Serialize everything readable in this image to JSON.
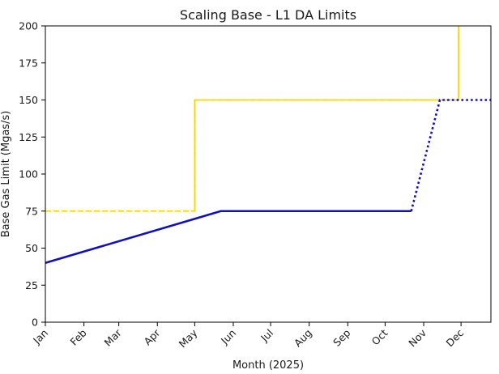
{
  "chart_data": {
    "type": "line",
    "title": "Scaling Base - L1 DA Limits",
    "xlabel": "Month (2025)",
    "ylabel": "Base Gas Limit (Mgas/s)",
    "xlim": [
      "2025-01-01",
      "2025-12-25"
    ],
    "ylim": [
      0,
      200
    ],
    "x_ticks": [
      "2025-01-01",
      "2025-02-01",
      "2025-03-01",
      "2025-04-01",
      "2025-05-01",
      "2025-06-01",
      "2025-07-01",
      "2025-08-01",
      "2025-09-01",
      "2025-10-01",
      "2025-11-01",
      "2025-12-01"
    ],
    "x_tick_labels": [
      "Jan",
      "Feb",
      "Mar",
      "Apr",
      "May",
      "Jun",
      "Jul",
      "Aug",
      "Sep",
      "Oct",
      "Nov",
      "Dec"
    ],
    "y_ticks": [
      0,
      25,
      50,
      75,
      100,
      125,
      150,
      175,
      200
    ],
    "grid": false,
    "legend": "none",
    "series": [
      {
        "color": "#ffd700",
        "style": "dashed",
        "x": [
          "2025-01-01",
          "2025-05-01",
          "2025-05-01",
          "2025-11-26"
        ],
        "values": [
          75,
          75,
          150,
          150
        ]
      },
      {
        "color": "#ffd700",
        "style": "solid",
        "x": [
          "2025-05-01",
          "2025-05-01",
          "2025-11-29",
          "2025-11-29"
        ],
        "values": [
          75,
          150,
          150,
          200
        ]
      },
      {
        "color": "#1010c0",
        "style": "solid",
        "x": [
          "2025-01-01",
          "2025-05-22",
          "2025-10-22"
        ],
        "values": [
          40,
          75,
          75
        ]
      },
      {
        "color": "#1010c0",
        "style": "dotted",
        "x": [
          "2025-10-22",
          "2025-11-14",
          "2025-12-25"
        ],
        "values": [
          75,
          150,
          150
        ]
      }
    ]
  }
}
